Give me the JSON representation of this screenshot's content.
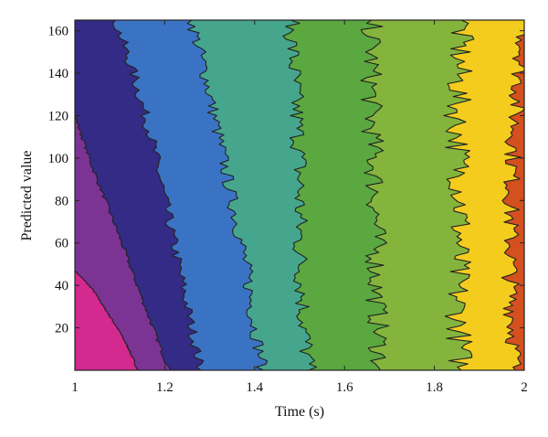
{
  "chart_data": {
    "type": "heatmap",
    "subtype": "filled-contour",
    "title": "",
    "xlabel": "Time (s)",
    "ylabel": "Predicted value",
    "xlim": [
      1,
      2
    ],
    "ylim": [
      0,
      165
    ],
    "xticks": [
      1,
      1.2,
      1.4,
      1.6,
      1.8,
      2
    ],
    "xtick_labels": [
      "1",
      "1.2",
      "1.4",
      "1.6",
      "1.8",
      "2"
    ],
    "yticks": [
      20,
      40,
      60,
      80,
      100,
      120,
      140,
      160
    ],
    "ytick_labels": [
      "20",
      "40",
      "60",
      "80",
      "100",
      "120",
      "140",
      "160"
    ],
    "grid": false,
    "legend": "none",
    "level_colors": [
      "#d4298f",
      "#7b3494",
      "#332b85",
      "#3b73c4",
      "#45a68d",
      "#5aa83f",
      "#84b43c",
      "#f4cc1d",
      "#d4501f"
    ],
    "contour_line_color": "#222222",
    "boundaries": [
      {
        "points": [
          [
            1.0,
            47
          ],
          [
            1.04,
            38
          ],
          [
            1.07,
            28
          ],
          [
            1.1,
            18
          ],
          [
            1.12,
            10
          ],
          [
            1.14,
            0
          ]
        ],
        "jitter": 0.002
      },
      {
        "points": [
          [
            1.0,
            120
          ],
          [
            1.04,
            95
          ],
          [
            1.09,
            68
          ],
          [
            1.13,
            45
          ],
          [
            1.17,
            22
          ],
          [
            1.21,
            0
          ]
        ],
        "jitter": 0.004
      },
      {
        "points": [
          [
            1.09,
            165
          ],
          [
            1.13,
            140
          ],
          [
            1.17,
            110
          ],
          [
            1.2,
            80
          ],
          [
            1.23,
            50
          ],
          [
            1.26,
            20
          ],
          [
            1.28,
            0
          ]
        ],
        "jitter": 0.012
      },
      {
        "points": [
          [
            1.26,
            165
          ],
          [
            1.29,
            140
          ],
          [
            1.32,
            110
          ],
          [
            1.35,
            80
          ],
          [
            1.38,
            50
          ],
          [
            1.4,
            20
          ],
          [
            1.42,
            0
          ]
        ],
        "jitter": 0.015
      },
      {
        "points": [
          [
            1.48,
            165
          ],
          [
            1.49,
            130
          ],
          [
            1.5,
            100
          ],
          [
            1.5,
            60
          ],
          [
            1.51,
            20
          ],
          [
            1.52,
            0
          ]
        ],
        "jitter": 0.02
      },
      {
        "points": [
          [
            1.66,
            165
          ],
          [
            1.66,
            120
          ],
          [
            1.67,
            80
          ],
          [
            1.67,
            40
          ],
          [
            1.68,
            0
          ]
        ],
        "jitter": 0.025
      },
      {
        "points": [
          [
            1.86,
            165
          ],
          [
            1.85,
            120
          ],
          [
            1.86,
            80
          ],
          [
            1.85,
            40
          ],
          [
            1.86,
            0
          ]
        ],
        "jitter": 0.03
      },
      {
        "points": [
          [
            2.0,
            160
          ],
          [
            1.98,
            120
          ],
          [
            1.97,
            80
          ],
          [
            1.97,
            40
          ],
          [
            1.98,
            0
          ]
        ],
        "jitter": 0.02
      }
    ]
  }
}
